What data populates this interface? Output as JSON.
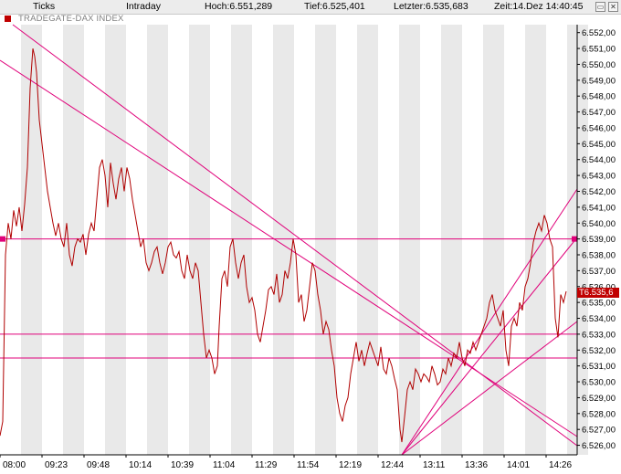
{
  "header": {
    "ticks": "Ticks",
    "intraday": "Intraday",
    "hoch": "Hoch:6.551,289",
    "tief": "Tief:6.525,401",
    "letzter": "Letzter:6.535,683",
    "zeit": "Zeit:14.Dez 14:40:45"
  },
  "chart_title": "TRADEGATE-DAX INDEX",
  "last_tag": "T6.535,6",
  "colors": {
    "price": "#b00000",
    "trendline": "#e0007a",
    "tag": "#c00000",
    "band": "#e9e9e9"
  },
  "chart_data": {
    "type": "line",
    "x_ticks": [
      "08:00",
      "09:23",
      "09:48",
      "10:14",
      "10:39",
      "11:04",
      "11:29",
      "11:54",
      "12:19",
      "12:44",
      "13:11",
      "13:36",
      "14:01",
      "14:26"
    ],
    "y_ticks": [
      "6.526,00",
      "6.527,00",
      "6.528,00",
      "6.529,00",
      "6.530,00",
      "6.531,00",
      "6.532,00",
      "6.533,00",
      "6.534,00",
      "6.535,00",
      "6.536,00",
      "6.537,00",
      "6.538,00",
      "6.539,00",
      "6.540,00",
      "6.541,00",
      "6.542,00",
      "6.543,00",
      "6.544,00",
      "6.545,00",
      "6.546,00",
      "6.547,00",
      "6.548,00",
      "6.549,00",
      "6.550,00",
      "6.551,00",
      "6.552,00"
    ],
    "ylim": [
      6525.4,
      6552.5
    ],
    "horizontal_levels": [
      6539.0,
      6533.0,
      6531.5
    ],
    "series": [
      {
        "values": [
          [
            0,
            6526.6
          ],
          [
            3,
            6527.5
          ],
          [
            6,
            6538.0
          ],
          [
            9,
            6540.0
          ],
          [
            12,
            6539.0
          ],
          [
            15,
            6540.8
          ],
          [
            18,
            6539.8
          ],
          [
            21,
            6541.0
          ],
          [
            24,
            6539.5
          ],
          [
            27,
            6541.2
          ],
          [
            30,
            6543.5
          ],
          [
            33,
            6548.5
          ],
          [
            36,
            6551.0
          ],
          [
            38,
            6550.5
          ],
          [
            40,
            6549.5
          ],
          [
            43,
            6546.5
          ],
          [
            46,
            6545.0
          ],
          [
            49,
            6543.5
          ],
          [
            52,
            6542.0
          ],
          [
            55,
            6541.0
          ],
          [
            58,
            6540.0
          ],
          [
            61,
            6539.2
          ],
          [
            64,
            6540.0
          ],
          [
            67,
            6539.0
          ],
          [
            70,
            6538.5
          ],
          [
            73,
            6540.0
          ],
          [
            76,
            6538.0
          ],
          [
            79,
            6537.3
          ],
          [
            82,
            6538.5
          ],
          [
            85,
            6539.0
          ],
          [
            88,
            6538.8
          ],
          [
            91,
            6539.3
          ],
          [
            94,
            6538.0
          ],
          [
            97,
            6539.3
          ],
          [
            100,
            6540.0
          ],
          [
            103,
            6539.5
          ],
          [
            106,
            6541.5
          ],
          [
            109,
            6543.5
          ],
          [
            112,
            6544.0
          ],
          [
            115,
            6543.0
          ],
          [
            118,
            6541.0
          ],
          [
            121,
            6543.8
          ],
          [
            124,
            6542.5
          ],
          [
            127,
            6541.5
          ],
          [
            130,
            6542.8
          ],
          [
            133,
            6543.5
          ],
          [
            136,
            6542.0
          ],
          [
            139,
            6543.5
          ],
          [
            142,
            6542.8
          ],
          [
            145,
            6541.5
          ],
          [
            148,
            6540.5
          ],
          [
            151,
            6539.5
          ],
          [
            154,
            6538.5
          ],
          [
            157,
            6539.0
          ],
          [
            160,
            6537.5
          ],
          [
            163,
            6537.0
          ],
          [
            166,
            6537.5
          ],
          [
            169,
            6538.2
          ],
          [
            172,
            6538.5
          ],
          [
            175,
            6537.5
          ],
          [
            178,
            6536.8
          ],
          [
            181,
            6537.5
          ],
          [
            184,
            6538.5
          ],
          [
            187,
            6538.8
          ],
          [
            190,
            6538.0
          ],
          [
            193,
            6537.8
          ],
          [
            196,
            6538.2
          ],
          [
            199,
            6537.0
          ],
          [
            202,
            6536.5
          ],
          [
            205,
            6538.0
          ],
          [
            208,
            6537.0
          ],
          [
            211,
            6536.5
          ],
          [
            214,
            6537.5
          ],
          [
            217,
            6537.0
          ],
          [
            220,
            6535.0
          ],
          [
            223,
            6533.0
          ],
          [
            226,
            6531.5
          ],
          [
            229,
            6532.0
          ],
          [
            232,
            6531.5
          ],
          [
            235,
            6530.5
          ],
          [
            238,
            6531.0
          ],
          [
            240,
            6533.5
          ],
          [
            243,
            6536.5
          ],
          [
            246,
            6537.0
          ],
          [
            249,
            6536.0
          ],
          [
            252,
            6538.5
          ],
          [
            255,
            6539.0
          ],
          [
            258,
            6537.5
          ],
          [
            261,
            6536.5
          ],
          [
            264,
            6537.5
          ],
          [
            267,
            6538.0
          ],
          [
            270,
            6536.0
          ],
          [
            273,
            6535.0
          ],
          [
            276,
            6535.3
          ],
          [
            279,
            6534.5
          ],
          [
            282,
            6533.0
          ],
          [
            285,
            6532.5
          ],
          [
            288,
            6533.5
          ],
          [
            291,
            6534.5
          ],
          [
            294,
            6535.8
          ],
          [
            297,
            6536.0
          ],
          [
            300,
            6535.5
          ],
          [
            303,
            6536.8
          ],
          [
            306,
            6535.0
          ],
          [
            309,
            6535.5
          ],
          [
            312,
            6537.0
          ],
          [
            315,
            6536.5
          ],
          [
            318,
            6537.5
          ],
          [
            321,
            6539.0
          ],
          [
            324,
            6538.0
          ],
          [
            327,
            6535.0
          ],
          [
            330,
            6535.5
          ],
          [
            333,
            6533.8
          ],
          [
            336,
            6534.5
          ],
          [
            339,
            6536.0
          ],
          [
            342,
            6537.5
          ],
          [
            345,
            6537.0
          ],
          [
            348,
            6535.5
          ],
          [
            351,
            6534.5
          ],
          [
            354,
            6533.0
          ],
          [
            357,
            6533.8
          ],
          [
            360,
            6533.3
          ],
          [
            363,
            6532.0
          ],
          [
            366,
            6531.0
          ],
          [
            369,
            6529.0
          ],
          [
            372,
            6528.0
          ],
          [
            375,
            6527.5
          ],
          [
            378,
            6528.5
          ],
          [
            381,
            6529.0
          ],
          [
            384,
            6530.5
          ],
          [
            387,
            6531.5
          ],
          [
            390,
            6532.5
          ],
          [
            393,
            6531.3
          ],
          [
            396,
            6532.0
          ],
          [
            399,
            6531.0
          ],
          [
            402,
            6531.8
          ],
          [
            405,
            6532.5
          ],
          [
            408,
            6532.0
          ],
          [
            411,
            6531.5
          ],
          [
            414,
            6531.0
          ],
          [
            417,
            6532.2
          ],
          [
            420,
            6530.8
          ],
          [
            423,
            6530.5
          ],
          [
            426,
            6531.5
          ],
          [
            429,
            6531.0
          ],
          [
            432,
            6530.2
          ],
          [
            435,
            6529.5
          ],
          [
            438,
            6527.0
          ],
          [
            440,
            6526.2
          ],
          [
            443,
            6527.8
          ],
          [
            446,
            6529.5
          ],
          [
            449,
            6530.0
          ],
          [
            452,
            6529.5
          ],
          [
            455,
            6530.8
          ],
          [
            458,
            6530.5
          ],
          [
            461,
            6530.0
          ],
          [
            464,
            6530.5
          ],
          [
            467,
            6530.3
          ],
          [
            470,
            6530.0
          ],
          [
            473,
            6531.0
          ],
          [
            476,
            6530.5
          ],
          [
            479,
            6529.8
          ],
          [
            482,
            6530.0
          ],
          [
            485,
            6530.8
          ],
          [
            488,
            6530.5
          ],
          [
            491,
            6531.5
          ],
          [
            494,
            6531.0
          ],
          [
            497,
            6531.8
          ],
          [
            500,
            6531.5
          ],
          [
            503,
            6532.5
          ],
          [
            506,
            6531.5
          ],
          [
            509,
            6531.0
          ],
          [
            512,
            6532.0
          ],
          [
            515,
            6531.8
          ],
          [
            518,
            6532.5
          ],
          [
            521,
            6532.0
          ],
          [
            524,
            6532.5
          ],
          [
            527,
            6533.0
          ],
          [
            530,
            6533.5
          ],
          [
            533,
            6534.0
          ],
          [
            536,
            6535.0
          ],
          [
            539,
            6535.5
          ],
          [
            542,
            6534.5
          ],
          [
            545,
            6534.0
          ],
          [
            548,
            6533.5
          ],
          [
            551,
            6534.5
          ],
          [
            554,
            6532.0
          ],
          [
            557,
            6531.0
          ],
          [
            560,
            6533.5
          ],
          [
            563,
            6534.0
          ],
          [
            566,
            6533.5
          ],
          [
            569,
            6535.0
          ],
          [
            572,
            6534.5
          ],
          [
            575,
            6536.0
          ],
          [
            578,
            6536.5
          ],
          [
            581,
            6537.5
          ],
          [
            584,
            6538.8
          ],
          [
            587,
            6539.5
          ],
          [
            590,
            6540.0
          ],
          [
            593,
            6539.5
          ],
          [
            596,
            6540.5
          ],
          [
            599,
            6540.0
          ],
          [
            602,
            6539.0
          ],
          [
            605,
            6538.5
          ],
          [
            608,
            6534.0
          ],
          [
            611,
            6532.8
          ],
          [
            614,
            6535.5
          ],
          [
            617,
            6535.0
          ],
          [
            620,
            6535.7
          ]
        ]
      }
    ]
  }
}
